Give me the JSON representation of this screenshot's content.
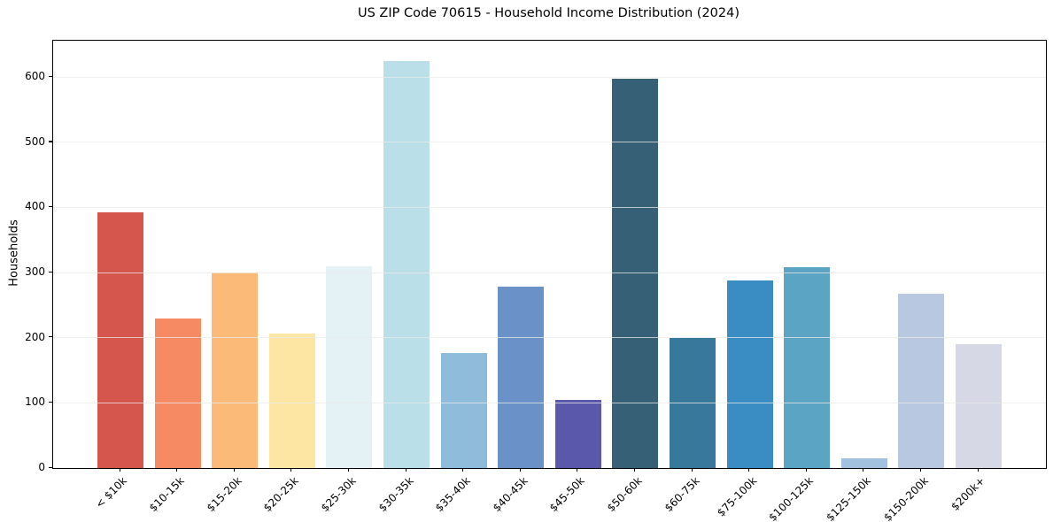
{
  "chart_data": {
    "type": "bar",
    "title": "US ZIP Code 70615 - Household Income Distribution (2024)",
    "xlabel": "",
    "ylabel": "Households",
    "categories": [
      "< $10k",
      "$10-15k",
      "$15-20k",
      "$20-25k",
      "$25-30k",
      "$30-35k",
      "$35-40k",
      "$40-45k",
      "$45-50k",
      "$50-60k",
      "$60-75k",
      "$75-100k",
      "$100-125k",
      "$125-150k",
      "$150-200k",
      "$200k+"
    ],
    "values": [
      392,
      230,
      300,
      207,
      310,
      625,
      177,
      278,
      105,
      598,
      200,
      288,
      308,
      15,
      267,
      190
    ],
    "bar_colors": [
      "#d5564d",
      "#f58a63",
      "#fcba78",
      "#fde5a4",
      "#e4f1f5",
      "#bbdfe9",
      "#90bcdb",
      "#6a92c8",
      "#5a58ab",
      "#356076",
      "#38789a",
      "#398dc3",
      "#5ba4c4",
      "#a2c1de",
      "#b8c8e0",
      "#d6d8e6"
    ],
    "yticks": [
      0,
      100,
      200,
      300,
      400,
      500,
      600
    ],
    "ylim": [
      0,
      656
    ],
    "grid": "horizontal",
    "legend": "none",
    "x_tick_rotation_deg": 45
  },
  "colors": {
    "background": "#ffffff",
    "axis": "#000000",
    "grid": "#e9e9e9",
    "text": "#000000"
  }
}
